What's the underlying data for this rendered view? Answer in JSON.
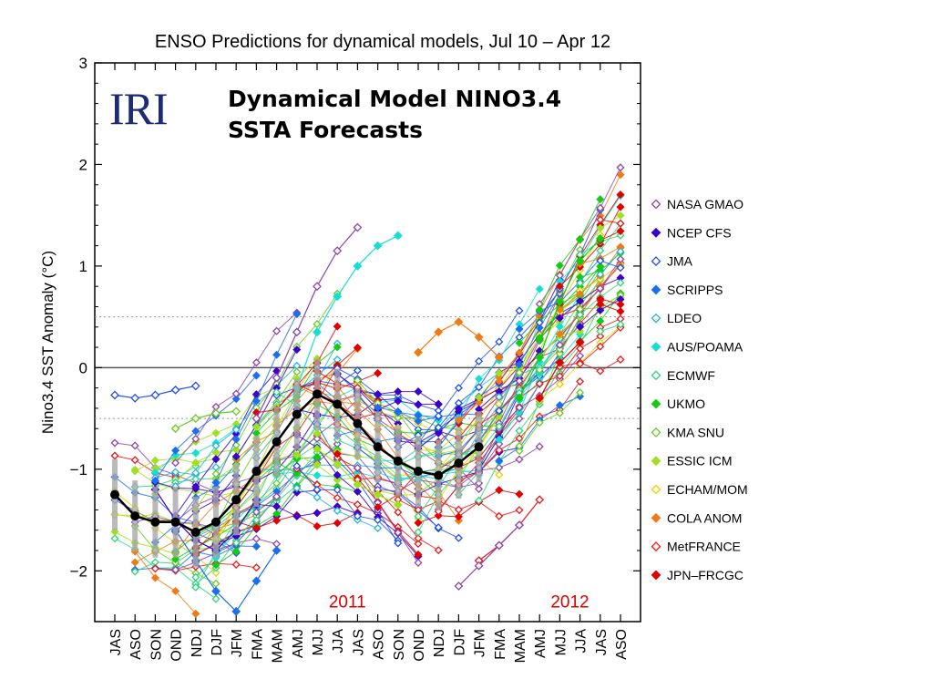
{
  "logo_text": "IRI",
  "overlay_title_line1": "Dynamical Model NINO3.4",
  "overlay_title_line2": "SSTA Forecasts",
  "chart_data": {
    "type": "line",
    "title": "ENSO Predictions for dynamical models, Jul 10 – Apr 12",
    "ylabel": "Nino3.4 SST Anomaly (°C)",
    "xlabel": "",
    "ylim": [
      -2.5,
      3
    ],
    "yticks": [
      -2,
      -1,
      0,
      1,
      2,
      3
    ],
    "grid": "dotted lines at +0.5 and -0.5, solid line at 0",
    "categories": [
      "JAS",
      "ASO",
      "SON",
      "OND",
      "NDJ",
      "DJF",
      "JFM",
      "FMA",
      "MAM",
      "AMJ",
      "MJJ",
      "JJA",
      "JAS",
      "ASO",
      "SON",
      "OND",
      "NDJ",
      "DJF",
      "JFM",
      "FMA",
      "MAM",
      "AMJ",
      "MJJ",
      "JJA",
      "JAS",
      "ASO"
    ],
    "year_labels": [
      {
        "text": "2011",
        "at_category_index": 11.5
      },
      {
        "text": "2012",
        "at_category_index": 22.5
      }
    ],
    "legend_position": "right",
    "legend": [
      {
        "name": "NASA GMAO",
        "color": "#8e44ad",
        "marker": "open-diamond"
      },
      {
        "name": "NCEP CFS",
        "color": "#3b00c9",
        "marker": "filled-diamond"
      },
      {
        "name": "JMA",
        "color": "#1f4ff0",
        "marker": "open-diamond"
      },
      {
        "name": "SCRIPPS",
        "color": "#1c6ef0",
        "marker": "filled-diamond"
      },
      {
        "name": "LDEO",
        "color": "#27b4d6",
        "marker": "open-diamond"
      },
      {
        "name": "AUS/POAMA",
        "color": "#14e0d2",
        "marker": "filled-diamond"
      },
      {
        "name": "ECMWF",
        "color": "#2ed47a",
        "marker": "open-diamond"
      },
      {
        "name": "UKMO",
        "color": "#12cc12",
        "marker": "filled-diamond"
      },
      {
        "name": "KMA SNU",
        "color": "#66cc22",
        "marker": "open-diamond"
      },
      {
        "name": "ESSIC ICM",
        "color": "#a0e020",
        "marker": "filled-diamond"
      },
      {
        "name": "ECHAM/MOM",
        "color": "#e0d400",
        "marker": "open-diamond"
      },
      {
        "name": "COLA ANOM",
        "color": "#f07a14",
        "marker": "filled-diamond"
      },
      {
        "name": "MetFRANCE",
        "color": "#e81818",
        "marker": "open-diamond"
      },
      {
        "name": "JPN–FRCGC",
        "color": "#e00000",
        "marker": "filled-diamond"
      }
    ],
    "observed": {
      "color": "#000000",
      "values": [
        -1.25,
        -1.46,
        -1.52,
        -1.52,
        -1.62,
        -1.52,
        -1.3,
        -1.02,
        -0.73,
        -0.46,
        -0.26,
        -0.36,
        -0.55,
        -0.78,
        -0.92,
        -1.02,
        -1.06,
        -0.94,
        -0.78
      ]
    },
    "sample_forecast_series": [
      {
        "model": "NASA GMAO",
        "start_index": 7,
        "values": [
          -0.5,
          -0.1,
          0.35,
          0.8,
          1.15,
          1.38
        ]
      },
      {
        "model": "NCEP CFS",
        "start_index": 2,
        "values": [
          -1.2,
          -1.5,
          -1.7,
          -1.8,
          -1.6,
          -1.3
        ]
      },
      {
        "model": "JMA",
        "start_index": 0,
        "values": [
          -0.27,
          -0.3,
          -0.27,
          -0.22,
          -0.18
        ]
      },
      {
        "model": "SCRIPPS",
        "start_index": 3,
        "values": [
          -1.6,
          -1.9,
          -2.2,
          -2.4,
          -2.1,
          -1.8
        ]
      },
      {
        "model": "AUS/POAMA",
        "start_index": 9,
        "values": [
          -0.2,
          0.35,
          0.7,
          1.0,
          1.2,
          1.3
        ]
      },
      {
        "model": "UKMO",
        "start_index": 20,
        "values": [
          -0.3,
          0.1,
          0.65,
          1.05,
          1.27
        ]
      },
      {
        "model": "KMA SNU",
        "start_index": 3,
        "values": [
          -0.6,
          -0.5,
          -0.45,
          -0.43
        ]
      },
      {
        "model": "ESSIC ICM",
        "start_index": 10,
        "values": [
          -0.8,
          -0.95,
          -1.15,
          -1.25,
          -1.35
        ]
      },
      {
        "model": "COLA ANOM",
        "start_index": 15,
        "values": [
          0.15,
          0.35,
          0.45,
          0.3,
          0.1
        ]
      },
      {
        "model": "MetFRANCE",
        "start_index": 18,
        "values": [
          -1.9,
          -1.75,
          -1.55,
          -1.3
        ]
      },
      {
        "model": "JPN–FRCGC",
        "start_index": 21,
        "values": [
          -0.3,
          0.05,
          0.25
        ]
      },
      {
        "model": "NASA GMAO",
        "start_index": 17,
        "values": [
          -2.15,
          -1.95,
          -1.75,
          -1.55
        ]
      }
    ]
  }
}
